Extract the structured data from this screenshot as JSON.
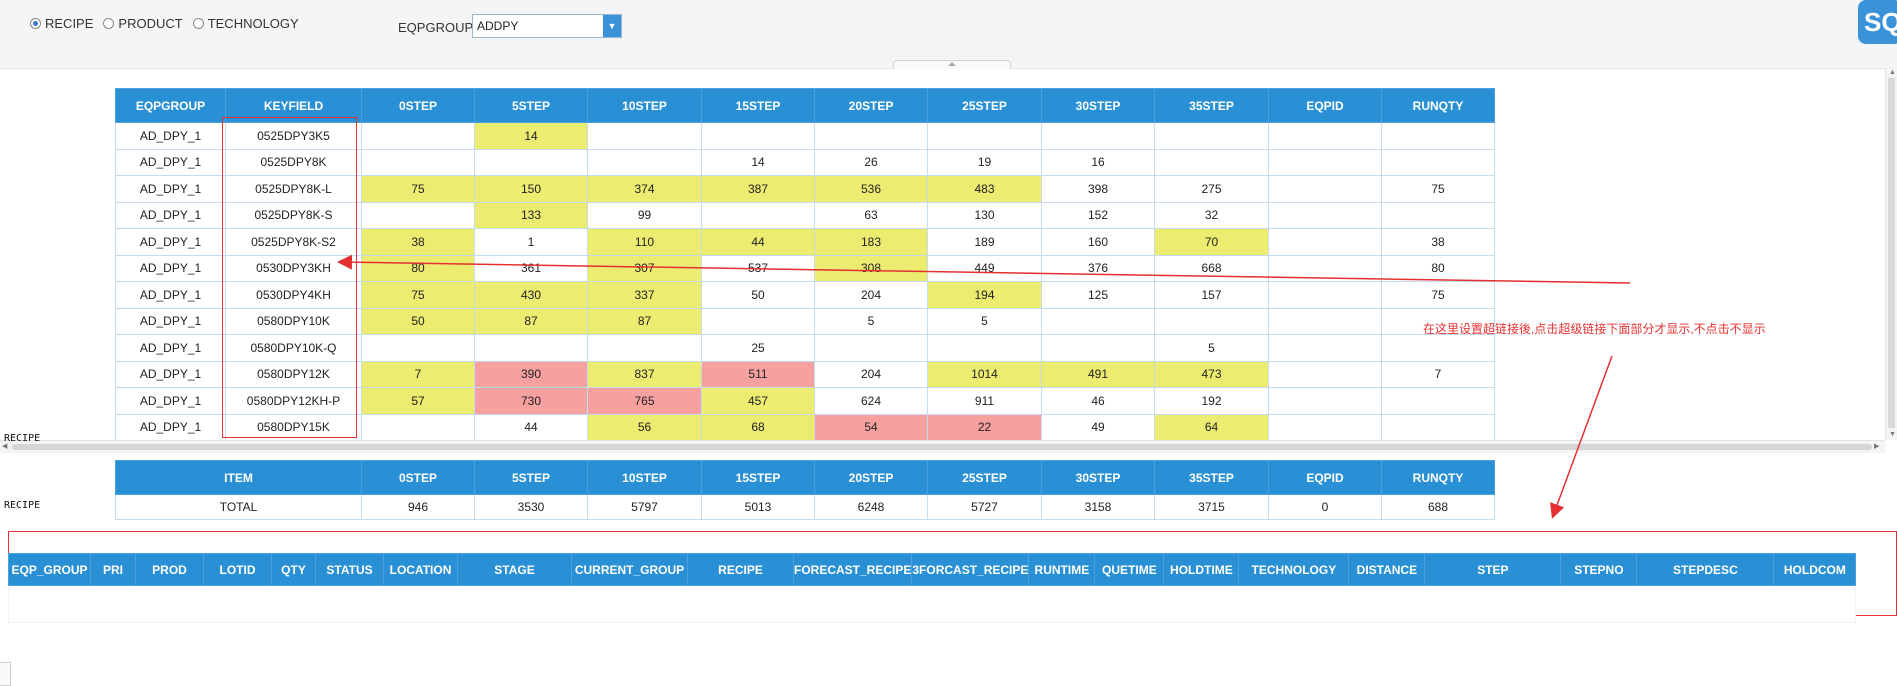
{
  "radio": {
    "options": [
      "RECIPE",
      "PRODUCT",
      "TECHNOLOGY"
    ],
    "selected": "RECIPE"
  },
  "eqpgroup": {
    "label": "EQPGROUP:",
    "value": "ADDPY"
  },
  "sql_badge": "SQL",
  "main_table": {
    "headers": [
      "EQPGROUP",
      "KEYFIELD",
      "0STEP",
      "5STEP",
      "10STEP",
      "15STEP",
      "20STEP",
      "25STEP",
      "30STEP",
      "35STEP",
      "EQPID",
      "RUNQTY"
    ],
    "rows": [
      [
        "AD_DPY_1",
        "0525DPY3K5",
        "",
        "14",
        "",
        "",
        "",
        "",
        "",
        "",
        "",
        ""
      ],
      [
        "AD_DPY_1",
        "0525DPY8K",
        "",
        "",
        "",
        "14",
        "26",
        "19",
        "16",
        "",
        "",
        ""
      ],
      [
        "AD_DPY_1",
        "0525DPY8K-L",
        "75",
        "150",
        "374",
        "387",
        "536",
        "483",
        "398",
        "275",
        "",
        "75"
      ],
      [
        "AD_DPY_1",
        "0525DPY8K-S",
        "",
        "133",
        "99",
        "",
        "63",
        "130",
        "152",
        "32",
        "",
        ""
      ],
      [
        "AD_DPY_1",
        "0525DPY8K-S2",
        "38",
        "1",
        "110",
        "44",
        "183",
        "189",
        "160",
        "70",
        "",
        "38"
      ],
      [
        "AD_DPY_1",
        "0530DPY3KH",
        "80",
        "361",
        "307",
        "537",
        "308",
        "449",
        "376",
        "668",
        "",
        "80"
      ],
      [
        "AD_DPY_1",
        "0530DPY4KH",
        "75",
        "430",
        "337",
        "50",
        "204",
        "194",
        "125",
        "157",
        "",
        "75"
      ],
      [
        "AD_DPY_1",
        "0580DPY10K",
        "50",
        "87",
        "87",
        "",
        "5",
        "5",
        "",
        "",
        "",
        ""
      ],
      [
        "AD_DPY_1",
        "0580DPY10K-Q",
        "",
        "",
        "",
        "25",
        "",
        "",
        "",
        "5",
        "",
        ""
      ],
      [
        "AD_DPY_1",
        "0580DPY12K",
        "7",
        "390",
        "837",
        "511",
        "204",
        "1014",
        "491",
        "473",
        "",
        "7"
      ],
      [
        "AD_DPY_1",
        "0580DPY12KH-P",
        "57",
        "730",
        "765",
        "457",
        "624",
        "911",
        "46",
        "192",
        "",
        ""
      ],
      [
        "AD_DPY_1",
        "0580DPY15K",
        "",
        "44",
        "56",
        "68",
        "54",
        "22",
        "49",
        "64",
        "",
        ""
      ]
    ],
    "highlights": [
      [
        "",
        "",
        "",
        "y",
        "",
        "",
        "",
        "",
        "",
        "",
        "",
        ""
      ],
      [
        "",
        "",
        "",
        "",
        "",
        "",
        "",
        "",
        "",
        "",
        "",
        ""
      ],
      [
        "",
        "",
        "y",
        "y",
        "y",
        "y",
        "y",
        "y",
        "",
        "",
        "",
        ""
      ],
      [
        "",
        "",
        "",
        "y",
        "",
        "",
        "",
        "",
        "",
        "",
        "",
        ""
      ],
      [
        "",
        "",
        "y",
        "",
        "y",
        "y",
        "y",
        "",
        "",
        "y",
        "",
        ""
      ],
      [
        "",
        "",
        "y",
        "",
        "y",
        "",
        "y",
        "",
        "",
        "",
        "",
        ""
      ],
      [
        "",
        "",
        "y",
        "y",
        "y",
        "",
        "",
        "y",
        "",
        "",
        "",
        ""
      ],
      [
        "",
        "",
        "y",
        "y",
        "y",
        "",
        "",
        "",
        "",
        "",
        "",
        ""
      ],
      [
        "",
        "",
        "",
        "",
        "",
        "",
        "",
        "",
        "",
        "",
        "",
        ""
      ],
      [
        "",
        "",
        "y",
        "r",
        "y",
        "r",
        "",
        "y",
        "y",
        "y",
        "",
        ""
      ],
      [
        "",
        "",
        "y",
        "r",
        "r",
        "y",
        "",
        "",
        "",
        "",
        "",
        ""
      ],
      [
        "",
        "",
        "",
        "",
        "y",
        "y",
        "r",
        "r",
        "",
        "y",
        "",
        ""
      ]
    ]
  },
  "side_labels": {
    "recipe_1": "RECIPE",
    "recipe_2": "RECIPE"
  },
  "total_table": {
    "headers": [
      "ITEM",
      "0STEP",
      "5STEP",
      "10STEP",
      "15STEP",
      "20STEP",
      "25STEP",
      "30STEP",
      "35STEP",
      "EQPID",
      "RUNQTY"
    ],
    "row": [
      "TOTAL",
      "946",
      "3530",
      "5797",
      "5013",
      "6248",
      "5727",
      "3158",
      "3715",
      "0",
      "688"
    ]
  },
  "annotation": "在这里设置超链接後,点击超级链接下面部分才显示,不点击不显示",
  "detail_table": {
    "headers": [
      "EQP_GROUP",
      "PRI",
      "PROD",
      "LOTID",
      "QTY",
      "STATUS",
      "LOCATION",
      "STAGE",
      "CURRENT_GROUP",
      "RECIPE",
      "FORECAST_RECIPE",
      "3FORCAST_RECIPE",
      "RUNTIME",
      "QUETIME",
      "HOLDTIME",
      "TECHNOLOGY",
      "DISTANCE",
      "STEP",
      "STEPNO",
      "STEPDESC",
      "HOLDCOM"
    ]
  },
  "colors": {
    "header": "#2a90d5",
    "yellow": "#ecec70",
    "pink": "#f7a0a0",
    "annotation": "#e43030"
  }
}
